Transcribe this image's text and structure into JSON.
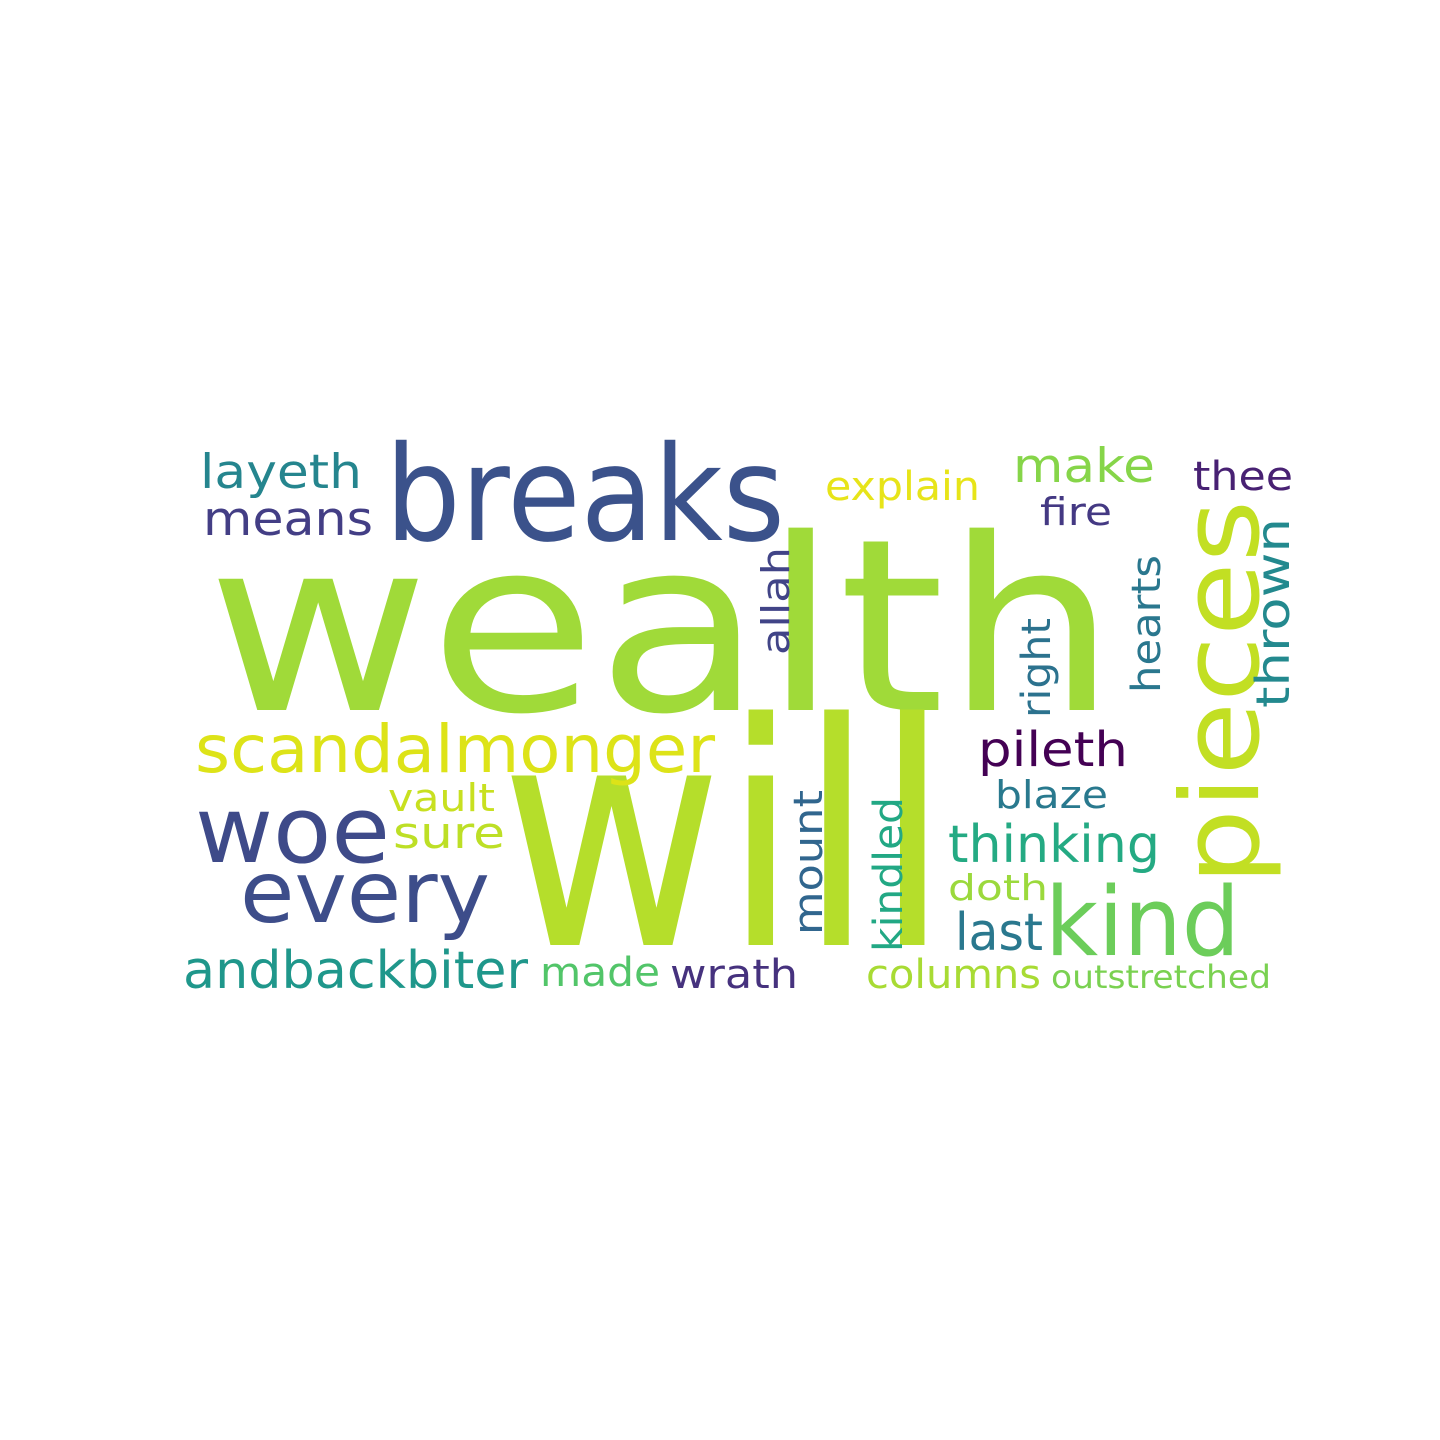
{
  "words": [
    {
      "text": "wealth",
      "color": "#a0da39",
      "weight": 1.0
    },
    {
      "text": "will",
      "color": "#b5de2b",
      "weight": 0.95
    },
    {
      "text": "pieces",
      "color": "#c2df23",
      "weight": 0.6
    },
    {
      "text": "breaks",
      "color": "#3b528b",
      "weight": 0.55
    },
    {
      "text": "woe",
      "color": "#3e4a89",
      "weight": 0.5
    },
    {
      "text": "kind",
      "color": "#6ccd5a",
      "weight": 0.45
    },
    {
      "text": "every",
      "color": "#3d4d8a",
      "weight": 0.45
    },
    {
      "text": "scandalmonger",
      "color": "#dde318",
      "weight": 0.4
    },
    {
      "text": "andbackbiter",
      "color": "#1f978b",
      "weight": 0.3
    },
    {
      "text": "thinking",
      "color": "#24aa83",
      "weight": 0.3
    },
    {
      "text": "pileth",
      "color": "#440154",
      "weight": 0.3
    },
    {
      "text": "means",
      "color": "#433e85",
      "weight": 0.3
    },
    {
      "text": "layeth",
      "color": "#25858e",
      "weight": 0.3
    },
    {
      "text": "make",
      "color": "#86d549",
      "weight": 0.3
    },
    {
      "text": "thrown",
      "color": "#23898e",
      "weight": 0.3
    },
    {
      "text": "last",
      "color": "#2a788e",
      "weight": 0.3
    },
    {
      "text": "sure",
      "color": "#bddf26",
      "weight": 0.3
    },
    {
      "text": "wrath",
      "color": "#46327e",
      "weight": 0.25
    },
    {
      "text": "hearts",
      "color": "#2a778e",
      "weight": 0.25
    },
    {
      "text": "made",
      "color": "#52c569",
      "weight": 0.25
    },
    {
      "text": "columns",
      "color": "#a8db34",
      "weight": 0.25
    },
    {
      "text": "mount",
      "color": "#31668e",
      "weight": 0.25
    },
    {
      "text": "kindled",
      "color": "#22a884",
      "weight": 0.25
    },
    {
      "text": "thee",
      "color": "#482173",
      "weight": 0.25
    },
    {
      "text": "explain",
      "color": "#e7e419",
      "weight": 0.25
    },
    {
      "text": "right",
      "color": "#2c728e",
      "weight": 0.22
    },
    {
      "text": "blaze",
      "color": "#29798e",
      "weight": 0.22
    },
    {
      "text": "fire",
      "color": "#443983",
      "weight": 0.22
    },
    {
      "text": "allah",
      "color": "#414487",
      "weight": 0.22
    },
    {
      "text": "vault",
      "color": "#c8e020",
      "weight": 0.22
    },
    {
      "text": "doth",
      "color": "#9bd93c",
      "weight": 0.22
    },
    {
      "text": "outstretched",
      "color": "#7ad151",
      "weight": 0.2
    }
  ]
}
